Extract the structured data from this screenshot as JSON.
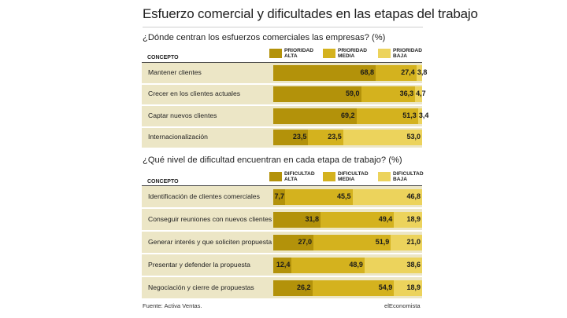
{
  "title": "Esfuerzo comercial y dificultades en las etapas del trabajo",
  "colors": {
    "high": "#b3920a",
    "mid": "#d4b21e",
    "low": "#ecd35c",
    "row_bg": "#ece6c6"
  },
  "footer": {
    "source": "Fuente: Activa Ventas.",
    "brand": "elEconomista"
  },
  "chart_data": [
    {
      "type": "bar",
      "stacked": true,
      "orientation": "horizontal",
      "subtitle": "¿Dónde centran los esfuerzos comerciales las empresas? (%)",
      "column_header": "CONCEPTO",
      "categories": [
        "Mantener clientes",
        "Crecer en los clientes actuales",
        "Captar nuevos clientes",
        "Internacionalización"
      ],
      "series": [
        {
          "name": "PRIORIDAD ALTA",
          "name_lines": [
            "PRIORIDAD",
            "ALTA"
          ],
          "values": [
            68.8,
            59.0,
            69.2,
            23.5
          ],
          "labels": [
            "68,8",
            "59,0",
            "69,2",
            "23,5"
          ]
        },
        {
          "name": "PRIORIDAD MEDIA",
          "name_lines": [
            "PRIORIDAD",
            "MEDIA"
          ],
          "values": [
            27.4,
            36.3,
            51.3,
            23.5
          ],
          "labels": [
            "27,4",
            "36,3",
            "51,3",
            "23,5"
          ]
        },
        {
          "name": "PRIORIDAD BAJA",
          "name_lines": [
            "PRIORIDAD",
            "BAJA"
          ],
          "values": [
            3.8,
            4.7,
            3.4,
            53.0
          ],
          "labels": [
            "3,8",
            "4,7",
            "3,4",
            "53,0"
          ]
        }
      ]
    },
    {
      "type": "bar",
      "stacked": true,
      "orientation": "horizontal",
      "subtitle": "¿Qué nivel de dificultad encuentran en cada etapa de trabajo? (%)",
      "column_header": "CONCEPTO",
      "categories": [
        "Identificación de clientes comerciales",
        "Conseguir reuniones con nuevos clientes",
        "Generar interés y que soliciten propuesta",
        "Presentar y defender la propuesta",
        "Negociación y cierre de propuestas"
      ],
      "series": [
        {
          "name": "DIFICULTAD ALTA",
          "name_lines": [
            "DIFICULTAD",
            "ALTA"
          ],
          "values": [
            7.7,
            31.8,
            27.0,
            12.4,
            26.2
          ],
          "labels": [
            "7,7",
            "31,8",
            "27,0",
            "12,4",
            "26,2"
          ]
        },
        {
          "name": "DIFICULTAD MEDIA",
          "name_lines": [
            "DIFICULTAD",
            "MEDIA"
          ],
          "values": [
            45.5,
            49.4,
            51.9,
            48.9,
            54.9
          ],
          "labels": [
            "45,5",
            "49,4",
            "51,9",
            "48,9",
            "54,9"
          ]
        },
        {
          "name": "DIFICULTAD BAJA",
          "name_lines": [
            "DIFICULTAD",
            "BAJA"
          ],
          "values": [
            46.8,
            18.9,
            21.0,
            38.6,
            18.9
          ],
          "labels": [
            "46,8",
            "18,9",
            "21,0",
            "38,6",
            "18,9"
          ]
        }
      ]
    }
  ]
}
